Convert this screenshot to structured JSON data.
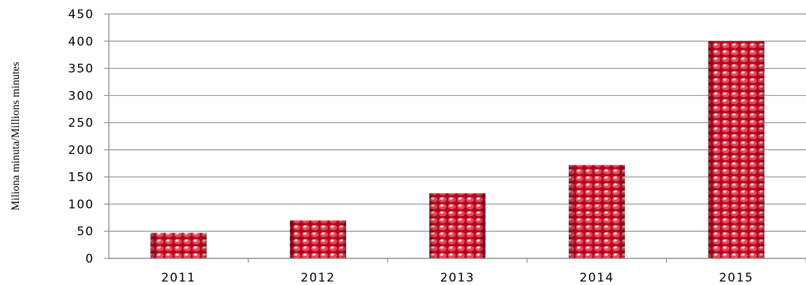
{
  "chart_data": {
    "type": "bar",
    "categories": [
      "2011",
      "2012",
      "2013",
      "2014",
      "2015"
    ],
    "values": [
      47,
      70,
      120,
      172,
      400
    ],
    "title": "",
    "xlabel": "",
    "ylabel": "Miliona minuta/Millions minutes",
    "ylim": [
      0,
      450
    ],
    "yticks": [
      0,
      50,
      100,
      150,
      200,
      250,
      300,
      350,
      400,
      450
    ],
    "grid": true,
    "legend": "none",
    "bar_color": "#c8102e",
    "bar_highlight": "#f3b1b1",
    "grid_color": "#8c8c8c"
  }
}
